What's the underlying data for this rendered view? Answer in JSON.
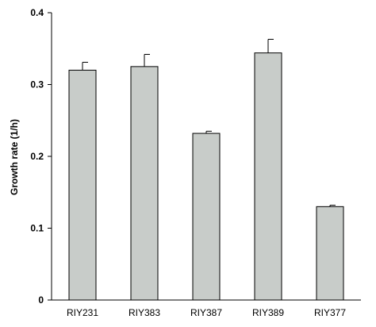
{
  "chart_data": {
    "type": "bar",
    "title": "",
    "xlabel": "",
    "ylabel": "Growth rate (1/h)",
    "categories": [
      "RIY231",
      "RIY383",
      "RIY387",
      "RIY389",
      "RIY377"
    ],
    "values": [
      0.32,
      0.325,
      0.232,
      0.344,
      0.13
    ],
    "error": [
      0.011,
      0.017,
      0.003,
      0.019,
      0.002
    ],
    "ylim": [
      0,
      0.4
    ],
    "yticks": [
      "0",
      "0.1",
      "0.2",
      "0.3",
      "0.4"
    ],
    "ytick_values": [
      0,
      0.1,
      0.2,
      0.3,
      0.4
    ],
    "grid": false,
    "legend": "none",
    "bar_color": "#c8ccc9",
    "edge_color": "#000000"
  }
}
